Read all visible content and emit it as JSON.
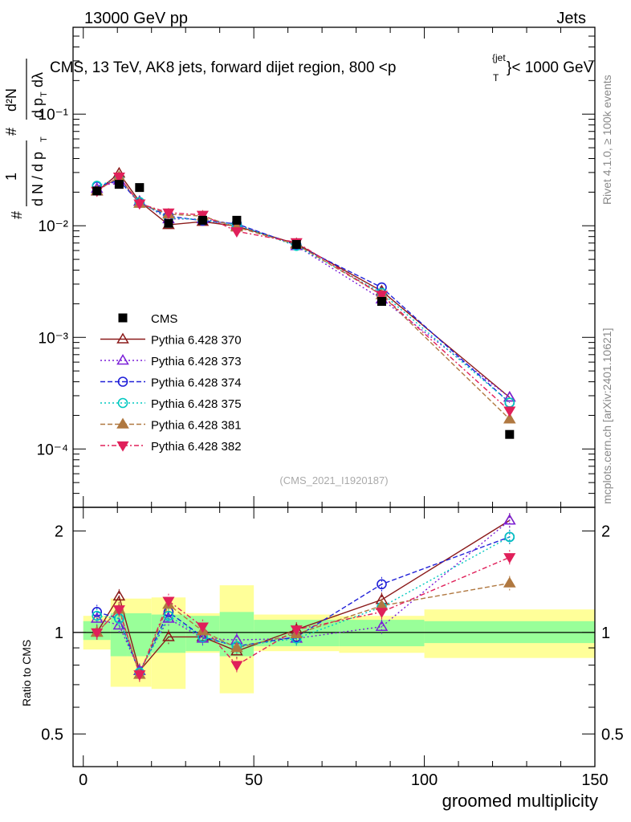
{
  "header": {
    "left": "13000 GeV pp",
    "right": "Jets"
  },
  "chart_data": {
    "type": "line",
    "title": "CMS, 13 TeV, AK8 jets, forward dijet region, 800 <p",
    "title_sup": "{jet",
    "title_sub": "T",
    "title_tail": "}< 1000 GeV",
    "ylabel": {
      "frac_num": "1",
      "frac_den": "d N / d p",
      "frac_den_sub": "T",
      "tail": "d p",
      "tail_sub": "T",
      "tail_d": "dλ",
      "hash": "#",
      "d2n": "d²N"
    },
    "xlabel": "groomed multiplicity",
    "ratio_ylabel": "Ratio to CMS",
    "side_text_1": "Rivet 4.1.0, ≥ 100k events",
    "side_text_2": "mcplots.cern.ch [arXiv:2401.10621]",
    "watermark": "(CMS_2021_I1920187)",
    "xlim": [
      -3,
      150
    ],
    "ylim": [
      3e-05,
      0.6
    ],
    "ratio_ylim": [
      0.4,
      2.35
    ],
    "x_ticks": [
      "0",
      "50",
      "100",
      "150"
    ],
    "x_tick_values": [
      0,
      50,
      100,
      150
    ],
    "y_ticks": [
      "10⁻⁴",
      "10⁻³",
      "10⁻²",
      "10⁻¹"
    ],
    "y_tick_values": [
      0.0001,
      0.001,
      0.01,
      0.1
    ],
    "ratio_ticks": [
      "0.5",
      "1",
      "2"
    ],
    "ratio_tick_values": [
      0.5,
      1,
      2
    ],
    "bins": [
      {
        "lo": 0,
        "hi": 8
      },
      {
        "lo": 8,
        "hi": 13
      },
      {
        "lo": 13,
        "hi": 20
      },
      {
        "lo": 20,
        "hi": 30
      },
      {
        "lo": 30,
        "hi": 40
      },
      {
        "lo": 40,
        "hi": 50
      },
      {
        "lo": 50,
        "hi": 75
      },
      {
        "lo": 75,
        "hi": 100
      },
      {
        "lo": 100,
        "hi": 150
      }
    ],
    "x": [
      4,
      10.5,
      16.5,
      25,
      35,
      45,
      62.5,
      87.5,
      125
    ],
    "cms": {
      "name": "CMS",
      "values": [
        0.0205,
        0.0235,
        0.022,
        0.0105,
        0.0112,
        0.0112,
        0.0068,
        0.0021,
        0.000135
      ],
      "band_green": [
        [
          0.95,
          1.08
        ],
        [
          0.85,
          1.14
        ],
        [
          0.85,
          1.14
        ],
        [
          0.87,
          1.13
        ],
        [
          0.88,
          1.12
        ],
        [
          0.85,
          1.15
        ],
        [
          0.91,
          1.09
        ],
        [
          0.91,
          1.09
        ],
        [
          0.93,
          1.08
        ]
      ],
      "band_yellow": [
        [
          0.89,
          1.12
        ],
        [
          0.69,
          1.26
        ],
        [
          0.69,
          1.26
        ],
        [
          0.68,
          1.27
        ],
        [
          0.87,
          1.14
        ],
        [
          0.66,
          1.38
        ],
        [
          0.88,
          1.13
        ],
        [
          0.87,
          1.12
        ],
        [
          0.84,
          1.17
        ]
      ]
    },
    "series": [
      {
        "name": "Pythia 6.428 370",
        "color": "#8b1a1a",
        "dash": "",
        "marker": "tri-up-open",
        "values": [
          0.0204,
          0.0295,
          0.0165,
          0.0102,
          0.0109,
          0.0099,
          0.0069,
          0.0026,
          0.00029
        ],
        "ratio": [
          1.0,
          1.28,
          0.77,
          0.97,
          0.97,
          0.88,
          1.02,
          1.25,
          2.15
        ]
      },
      {
        "name": "Pythia 6.428 373",
        "color": "#7b1fd8",
        "dash": "2,3",
        "marker": "tri-up-open",
        "values": [
          0.0215,
          0.0255,
          0.0165,
          0.0115,
          0.0115,
          0.0103,
          0.0066,
          0.0022,
          0.00029
        ],
        "ratio": [
          1.1,
          1.05,
          0.77,
          1.1,
          0.96,
          0.95,
          0.96,
          1.04,
          2.15
        ]
      },
      {
        "name": "Pythia 6.428 374",
        "color": "#2020d8",
        "dash": "6,3",
        "marker": "circle-open",
        "values": [
          0.0225,
          0.0255,
          0.016,
          0.0122,
          0.0111,
          0.0104,
          0.0067,
          0.0028,
          0.00026
        ],
        "ratio": [
          1.15,
          1.1,
          0.76,
          1.15,
          0.97,
          0.91,
          0.97,
          1.39,
          1.92
        ]
      },
      {
        "name": "Pythia 6.428 375",
        "color": "#00c8c0",
        "dash": "2,3",
        "marker": "circle-open",
        "values": [
          0.0228,
          0.0262,
          0.0163,
          0.0118,
          0.0113,
          0.0102,
          0.0066,
          0.0025,
          0.00026
        ],
        "ratio": [
          1.12,
          1.1,
          0.76,
          1.12,
          0.97,
          0.91,
          0.96,
          1.19,
          1.92
        ]
      },
      {
        "name": "Pythia 6.428 381",
        "color": "#b07840",
        "dash": "6,3",
        "marker": "tri-up-filled",
        "values": [
          0.0205,
          0.0275,
          0.0158,
          0.0127,
          0.0122,
          0.0097,
          0.0068,
          0.0024,
          0.000185
        ],
        "ratio": [
          1.0,
          1.17,
          0.75,
          1.21,
          1.01,
          0.9,
          0.99,
          1.2,
          1.4
        ]
      },
      {
        "name": "Pythia 6.428 382",
        "color": "#e0205a",
        "dash": "6,3,2,3",
        "marker": "tri-down-filled",
        "values": [
          0.0205,
          0.0275,
          0.0158,
          0.0131,
          0.0125,
          0.0089,
          0.0071,
          0.0024,
          0.00022
        ],
        "ratio": [
          1.0,
          1.17,
          0.75,
          1.24,
          1.04,
          0.8,
          1.02,
          1.15,
          1.67
        ]
      }
    ]
  }
}
